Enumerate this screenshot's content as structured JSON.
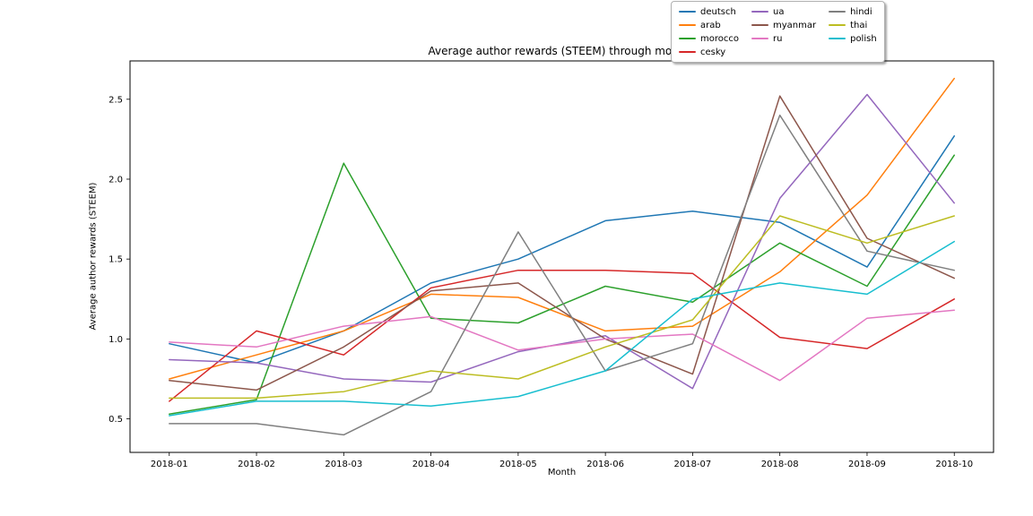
{
  "figure": {
    "background": "#ffffff"
  },
  "chart_data": {
    "type": "line",
    "title": "Average author rewards (STEEM) through months",
    "xlabel": "Month",
    "ylabel": "Average author rewards (STEEM)",
    "categories": [
      "2018-01",
      "2018-02",
      "2018-03",
      "2018-04",
      "2018-05",
      "2018-06",
      "2018-07",
      "2018-08",
      "2018-09",
      "2018-10"
    ],
    "yticks": [
      0.5,
      1.0,
      1.5,
      2.0,
      2.5
    ],
    "ylim": [
      0.29,
      2.74
    ],
    "grid": false,
    "legend_position": "top-right-outside",
    "legend_ncol": 3,
    "series": [
      {
        "name": "deutsch",
        "color": "#1f77b4",
        "values": [
          0.97,
          0.85,
          1.05,
          1.35,
          1.5,
          1.74,
          1.8,
          1.73,
          1.45,
          2.27
        ]
      },
      {
        "name": "arab",
        "color": "#ff7f0e",
        "values": [
          0.75,
          0.9,
          1.05,
          1.28,
          1.26,
          1.05,
          1.08,
          1.42,
          1.9,
          2.63
        ]
      },
      {
        "name": "morocco",
        "color": "#2ca02c",
        "values": [
          0.53,
          0.62,
          2.1,
          1.13,
          1.1,
          1.33,
          1.23,
          1.6,
          1.33,
          2.15
        ]
      },
      {
        "name": "cesky",
        "color": "#d62728",
        "values": [
          0.61,
          1.05,
          0.9,
          1.32,
          1.43,
          1.43,
          1.41,
          1.01,
          0.94,
          1.25
        ]
      },
      {
        "name": "ua",
        "color": "#9467bd",
        "values": [
          0.87,
          0.85,
          0.75,
          0.73,
          0.92,
          1.02,
          0.69,
          1.88,
          2.53,
          1.85
        ]
      },
      {
        "name": "myanmar",
        "color": "#8c564b",
        "values": [
          0.74,
          0.68,
          0.95,
          1.3,
          1.35,
          1.0,
          0.78,
          2.52,
          1.63,
          1.38
        ]
      },
      {
        "name": "ru",
        "color": "#e377c2",
        "values": [
          0.98,
          0.95,
          1.08,
          1.14,
          0.93,
          1.0,
          1.03,
          0.74,
          1.13,
          1.18
        ]
      },
      {
        "name": "hindi",
        "color": "#7f7f7f",
        "values": [
          0.47,
          0.47,
          0.4,
          0.67,
          1.67,
          0.8,
          0.97,
          2.4,
          1.55,
          1.43
        ]
      },
      {
        "name": "thai",
        "color": "#bcbd22",
        "values": [
          0.63,
          0.63,
          0.67,
          0.8,
          0.75,
          0.95,
          1.12,
          1.77,
          1.6,
          1.77
        ]
      },
      {
        "name": "polish",
        "color": "#17becf",
        "values": [
          0.52,
          0.61,
          0.61,
          0.58,
          0.64,
          0.8,
          1.25,
          1.35,
          1.28,
          1.61
        ]
      }
    ]
  }
}
